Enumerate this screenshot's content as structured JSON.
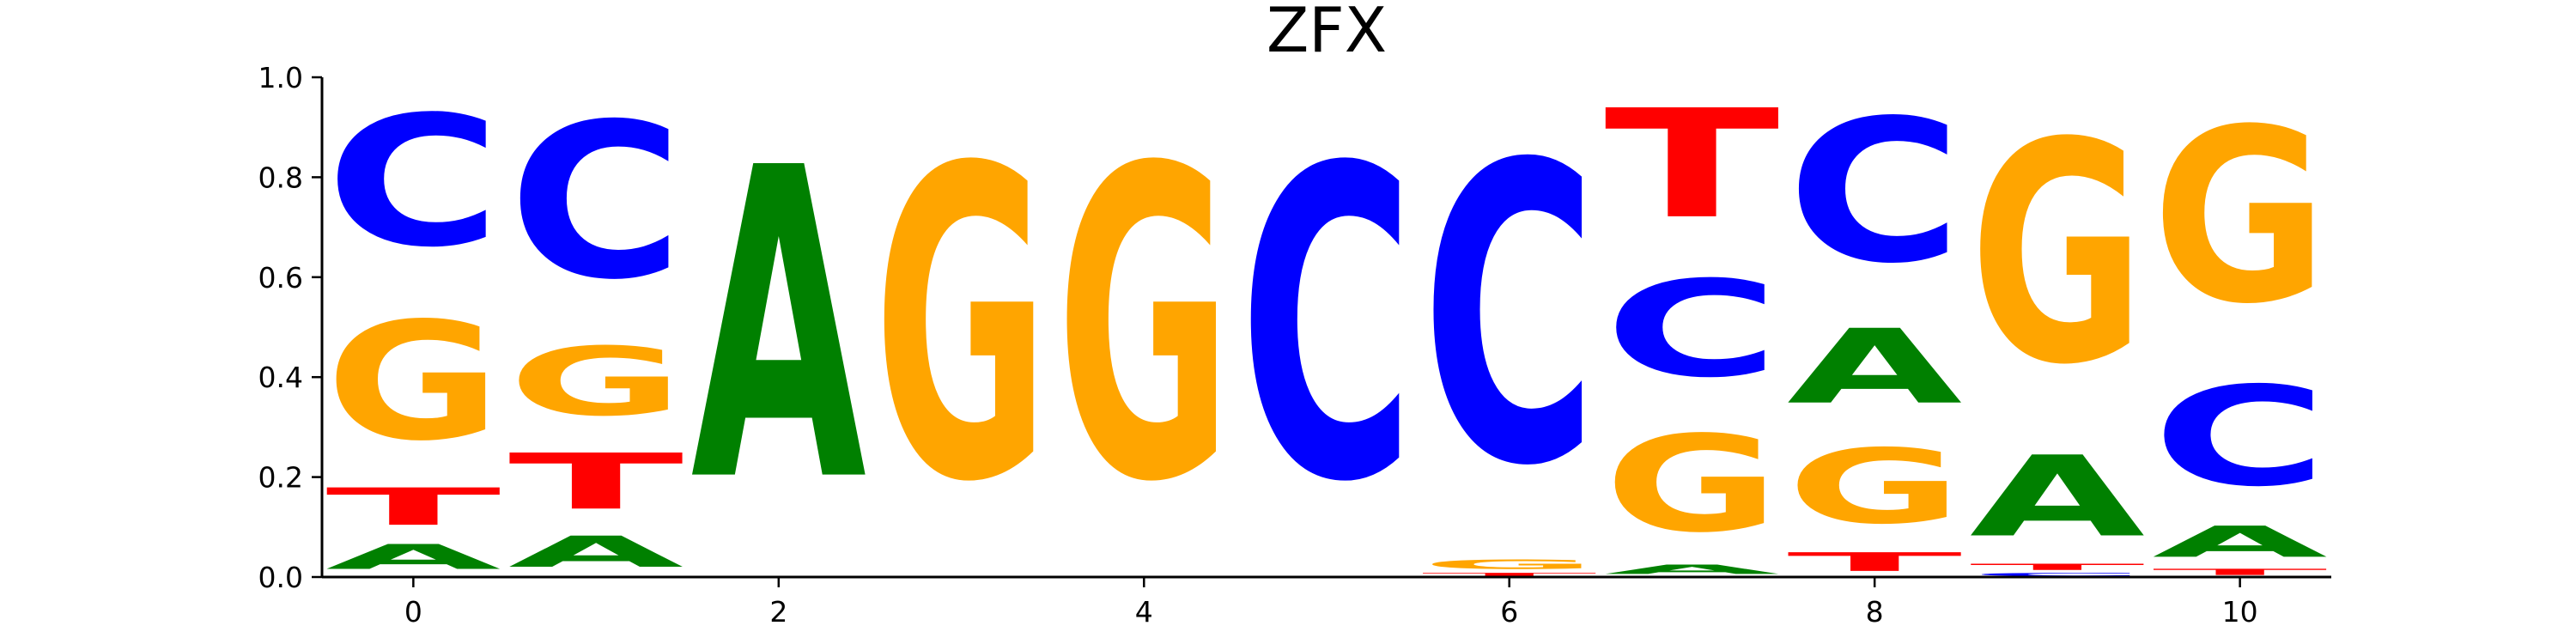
{
  "chart_data": {
    "type": "sequence-logo",
    "title": "ZFX",
    "xlabel": "",
    "ylabel": "",
    "ylim": [
      0,
      1.0
    ],
    "xlim": [
      -0.5,
      10.5
    ],
    "yticks": [
      "0.0",
      "0.2",
      "0.4",
      "0.6",
      "0.8",
      "1.0"
    ],
    "xticks": [
      "0",
      "2",
      "4",
      "6",
      "8",
      "10"
    ],
    "grid": false,
    "colors": {
      "A": "#008000",
      "C": "#0000ff",
      "G": "#ffa500",
      "T": "#ff0000"
    },
    "positions": [
      {
        "x": 0,
        "letters": [
          {
            "base": "A",
            "height": 0.08
          },
          {
            "base": "T",
            "height": 0.12
          },
          {
            "base": "G",
            "height": 0.38
          },
          {
            "base": "C",
            "height": 0.42
          }
        ]
      },
      {
        "x": 1,
        "letters": [
          {
            "base": "A",
            "height": 0.1
          },
          {
            "base": "T",
            "height": 0.18
          },
          {
            "base": "G",
            "height": 0.22
          },
          {
            "base": "C",
            "height": 0.5
          }
        ]
      },
      {
        "x": 2,
        "letters": [
          {
            "base": "A",
            "height": 1.0
          }
        ]
      },
      {
        "x": 3,
        "letters": [
          {
            "base": "G",
            "height": 1.0
          }
        ]
      },
      {
        "x": 4,
        "letters": [
          {
            "base": "G",
            "height": 1.0
          }
        ]
      },
      {
        "x": 5,
        "letters": [
          {
            "base": "C",
            "height": 1.0
          }
        ]
      },
      {
        "x": 6,
        "letters": [
          {
            "base": "T",
            "height": 0.01
          },
          {
            "base": "G",
            "height": 0.03
          },
          {
            "base": "C",
            "height": 0.96
          }
        ]
      },
      {
        "x": 7,
        "letters": [
          {
            "base": "A",
            "height": 0.03
          },
          {
            "base": "G",
            "height": 0.31
          },
          {
            "base": "C",
            "height": 0.31
          },
          {
            "base": "T",
            "height": 0.35
          }
        ]
      },
      {
        "x": 8,
        "letters": [
          {
            "base": "T",
            "height": 0.06
          },
          {
            "base": "G",
            "height": 0.24
          },
          {
            "base": "A",
            "height": 0.24
          },
          {
            "base": "C",
            "height": 0.46
          }
        ]
      },
      {
        "x": 9,
        "letters": [
          {
            "base": "C",
            "height": 0.01
          },
          {
            "base": "T",
            "height": 0.02
          },
          {
            "base": "A",
            "height": 0.26
          },
          {
            "base": "G",
            "height": 0.71
          }
        ]
      },
      {
        "x": 10,
        "letters": [
          {
            "base": "T",
            "height": 0.02
          },
          {
            "base": "A",
            "height": 0.1
          },
          {
            "base": "C",
            "height": 0.32
          },
          {
            "base": "G",
            "height": 0.56
          }
        ]
      }
    ]
  }
}
